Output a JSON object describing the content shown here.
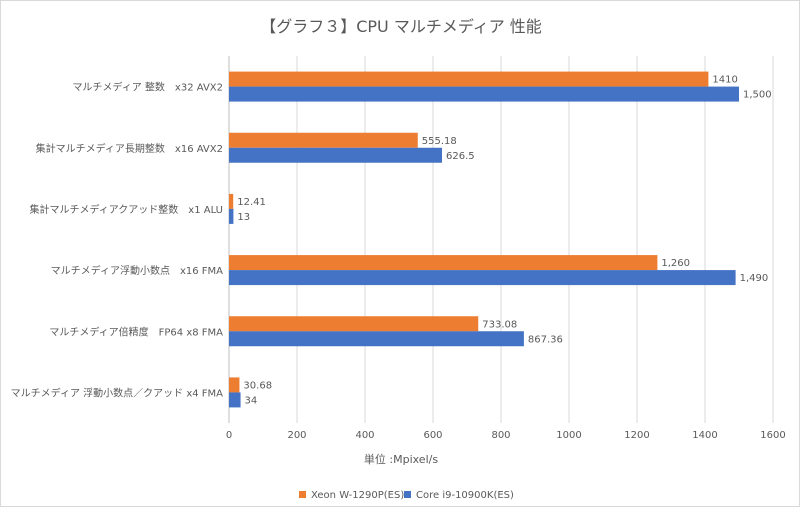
{
  "chart_data": {
    "type": "bar",
    "orientation": "horizontal",
    "title": "【グラフ３】CPU マルチメディア 性能",
    "xlabel": "単位 :Mpixel/s",
    "ylabel": "",
    "xlim": [
      0,
      1600
    ],
    "xticks": [
      "0",
      "200",
      "400",
      "600",
      "800",
      "1000",
      "1200",
      "1400",
      "1600"
    ],
    "grid": true,
    "legend_position": "bottom",
    "categories": [
      "マルチメディア 整数　x32 AVX2",
      "集計マルチメディア長期整数　x16 AVX2",
      "集計マルチメディアクアッド整数　x1 ALU",
      "マルチメディア浮動小数点　x16 FMA",
      "マルチメディア倍精度　FP64 x8 FMA",
      "マルチメディア 浮動小数点／クアッド x4 FMA"
    ],
    "series": [
      {
        "name": "Xeon W-1290P(ES)",
        "color": "#ed7d31",
        "values": [
          1410,
          555.18,
          12.41,
          1260,
          733.08,
          30.68
        ],
        "labels": [
          "1410",
          "555.18",
          "12.41",
          "1,260",
          "733.08",
          "30.68"
        ]
      },
      {
        "name": "Core i9-10900K(ES)",
        "color": "#4472c4",
        "values": [
          1500,
          626.5,
          13,
          1490,
          867.36,
          34
        ],
        "labels": [
          "1,500",
          "626.5",
          "13",
          "1,490",
          "867.36",
          "34"
        ]
      }
    ]
  }
}
